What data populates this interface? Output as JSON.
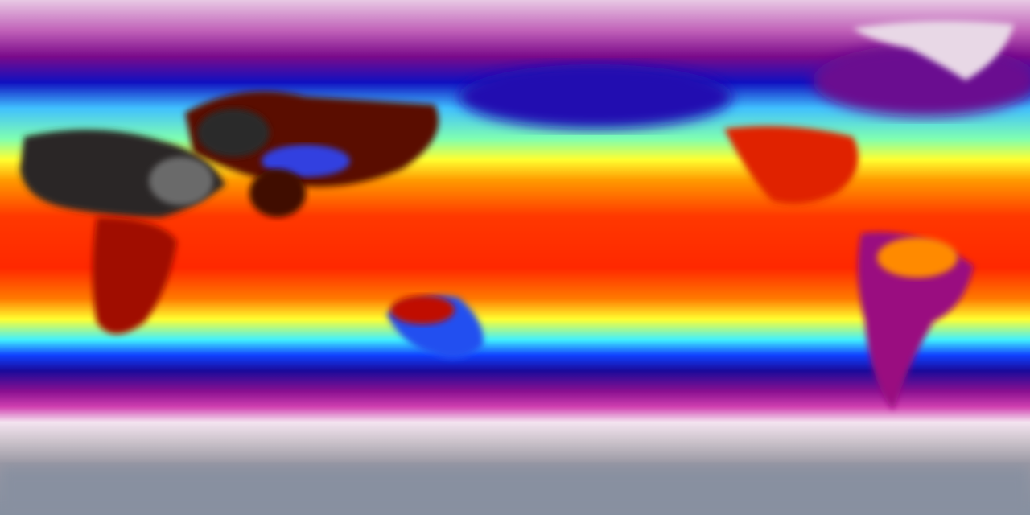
{
  "map": {
    "projection": "equirectangular",
    "colormap": [
      "#8a8f9e",
      "#f0e6f0",
      "#b0208f",
      "#1a0a9a",
      "#0a20f0",
      "#40f0ff",
      "#ffff20",
      "#ff9a00",
      "#ff2000",
      "#a00000",
      "#2a2a2a"
    ],
    "band_colors": {
      "polar_north": "#d8a0d4",
      "subpolar": "#9a1590",
      "cold": "#1020e0",
      "cool": "#40e8ff",
      "mild": "#ffff30",
      "warm": "#ff9a00",
      "hot": "#ff3000",
      "polar_south": "#8a8f9e"
    }
  }
}
